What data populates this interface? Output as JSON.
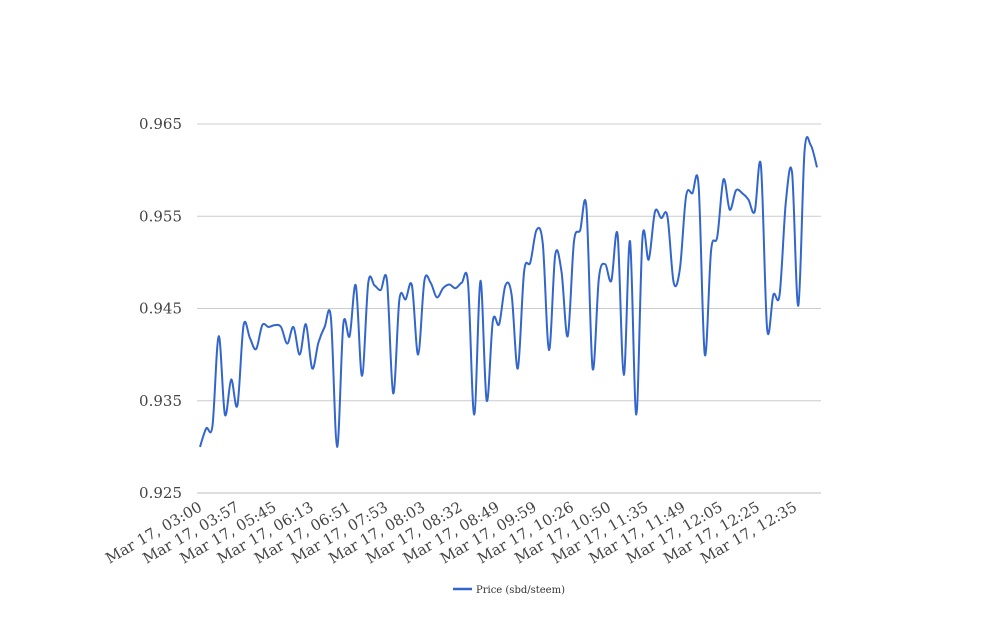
{
  "chart_data": {
    "type": "line",
    "title": "",
    "xlabel": "",
    "ylabel": "",
    "ylim": [
      0.925,
      0.965
    ],
    "yticks": [
      "0.925",
      "0.935",
      "0.945",
      "0.955",
      "0.965"
    ],
    "x_tick_labels": [
      "Mar 17, 03:00",
      "Mar 17, 03:57",
      "Mar 17, 05:45",
      "Mar 17, 06:13",
      "Mar 17, 06:51",
      "Mar 17, 07:53",
      "Mar 17, 08:03",
      "Mar 17, 08:32",
      "Mar 17, 08:49",
      "Mar 17, 09:59",
      "Mar 17, 10:26",
      "Mar 17, 10:50",
      "Mar 17, 11:35",
      "Mar 17, 11:49",
      "Mar 17, 12:05",
      "Mar 17, 12:25",
      "Mar 17, 12:35"
    ],
    "grid": "horizontal",
    "legend_position": "bottom",
    "series": [
      {
        "name": "Price (sbd/steem)",
        "color": "#3366cc",
        "values": [
          0.93,
          0.932,
          0.9323,
          0.942,
          0.9335,
          0.9373,
          0.9345,
          0.9432,
          0.9418,
          0.9406,
          0.9432,
          0.943,
          0.9432,
          0.943,
          0.9412,
          0.943,
          0.94,
          0.9433,
          0.9385,
          0.9413,
          0.943,
          0.944,
          0.93,
          0.9433,
          0.942,
          0.9475,
          0.9377,
          0.9478,
          0.9475,
          0.947,
          0.948,
          0.9358,
          0.946,
          0.946,
          0.9475,
          0.94,
          0.948,
          0.9478,
          0.9462,
          0.9472,
          0.9476,
          0.9472,
          0.9478,
          0.9478,
          0.9335,
          0.948,
          0.935,
          0.9437,
          0.9433,
          0.9475,
          0.9465,
          0.9385,
          0.949,
          0.95,
          0.9535,
          0.952,
          0.9405,
          0.9508,
          0.949,
          0.942,
          0.9522,
          0.9535,
          0.956,
          0.9385,
          0.9483,
          0.9498,
          0.948,
          0.953,
          0.9378,
          0.9523,
          0.9335,
          0.9527,
          0.9503,
          0.9555,
          0.9548,
          0.955,
          0.9478,
          0.9493,
          0.9572,
          0.9575,
          0.9583,
          0.94,
          0.9513,
          0.9528,
          0.959,
          0.9557,
          0.9578,
          0.9575,
          0.9568,
          0.9555,
          0.9605,
          0.9428,
          0.9465,
          0.9465,
          0.9565,
          0.9597,
          0.9453,
          0.962,
          0.9627,
          0.9603
        ]
      }
    ]
  }
}
